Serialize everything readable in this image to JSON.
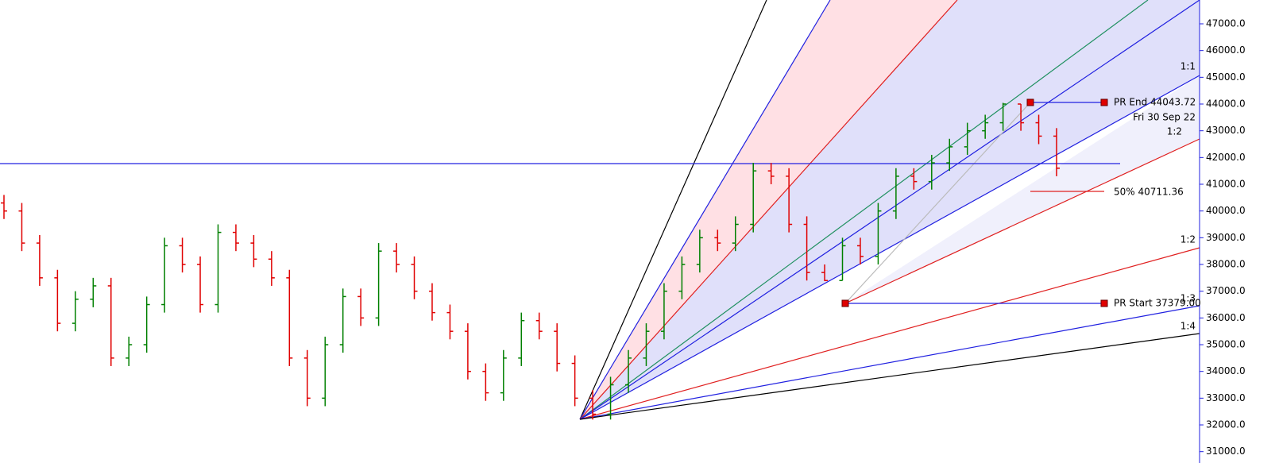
{
  "chart_data": {
    "type": "ohlc",
    "ylim": [
      30575,
      47891
    ],
    "yticks": [
      {
        "value": 31000,
        "label": "31000.0"
      },
      {
        "value": 32000,
        "label": "32000.0"
      },
      {
        "value": 33000,
        "label": "33000.0"
      },
      {
        "value": 34000,
        "label": "34000.0"
      },
      {
        "value": 35000,
        "label": "35000.0"
      },
      {
        "value": 36000,
        "label": "36000.0"
      },
      {
        "value": 37000,
        "label": "37000.0"
      },
      {
        "value": 38000,
        "label": "38000.0"
      },
      {
        "value": 39000,
        "label": "39000.0"
      },
      {
        "value": 40000,
        "label": "40000.0"
      },
      {
        "value": 41000,
        "label": "41000.0"
      },
      {
        "value": 42000,
        "label": "42000.0"
      },
      {
        "value": 43000,
        "label": "43000.0"
      },
      {
        "value": 44000,
        "label": "44000.0"
      },
      {
        "value": 45000,
        "label": "45000.0"
      },
      {
        "value": 46000,
        "label": "46000.0"
      },
      {
        "value": 47000,
        "label": "47000.0"
      }
    ],
    "up_color": "#008000",
    "down_color": "#e00000",
    "open": [
      40300,
      40000,
      38800,
      37500,
      35800,
      36700,
      37200,
      34500,
      35000,
      36500,
      38700,
      38000,
      36500,
      39200,
      38800,
      38200,
      37500,
      34500,
      33000,
      35000,
      36800,
      36000,
      38500,
      38000,
      37000,
      36200,
      35500,
      34000,
      33200,
      34500,
      35900,
      35500,
      34300,
      33000,
      32400,
      33500,
      34500,
      35500,
      37000,
      38000,
      39000,
      38800,
      39500,
      41500,
      41300,
      39500,
      37700,
      37400,
      38700,
      38300,
      40000,
      41300,
      41100,
      41800,
      42400,
      43000,
      43300,
      44000,
      43300,
      42800
    ],
    "high": [
      40600,
      40300,
      39100,
      37800,
      37000,
      37500,
      37500,
      35300,
      36800,
      39000,
      39000,
      38300,
      39500,
      39500,
      39100,
      38500,
      37800,
      34800,
      35300,
      37100,
      37100,
      38800,
      38800,
      38300,
      37300,
      36500,
      35800,
      34300,
      34800,
      36200,
      36200,
      35800,
      34600,
      33300,
      33800,
      34800,
      35800,
      37300,
      38300,
      39300,
      39300,
      39800,
      41800,
      41800,
      41600,
      39800,
      38000,
      39000,
      39000,
      40300,
      41600,
      41600,
      42100,
      42700,
      43300,
      43600,
      44043.72,
      44000,
      43600,
      43100
    ],
    "low": [
      39700,
      38500,
      37200,
      35500,
      35500,
      36400,
      34200,
      34200,
      34700,
      36200,
      37700,
      36200,
      36200,
      38500,
      37900,
      37200,
      34200,
      32700,
      32700,
      34700,
      35700,
      35700,
      37700,
      36700,
      35900,
      35200,
      33700,
      32900,
      32900,
      34200,
      35200,
      34000,
      32700,
      32200,
      32200,
      33200,
      34200,
      35200,
      36700,
      37700,
      38500,
      38500,
      39200,
      41000,
      39200,
      37400,
      37379,
      37400,
      38000,
      38000,
      39700,
      40800,
      40800,
      41500,
      42100,
      42700,
      43000,
      43000,
      42500,
      41300
    ],
    "close": [
      40000,
      38800,
      37500,
      35800,
      36700,
      37200,
      34500,
      35000,
      36500,
      38700,
      38000,
      36500,
      39200,
      38800,
      38200,
      37500,
      34500,
      33000,
      35000,
      36800,
      36000,
      38500,
      38000,
      37000,
      36200,
      35500,
      34000,
      33200,
      34500,
      35900,
      35500,
      34300,
      33000,
      32400,
      33500,
      34500,
      35500,
      37000,
      38000,
      39000,
      38800,
      39500,
      41500,
      41300,
      39500,
      37700,
      37400,
      38700,
      38300,
      40000,
      41300,
      41100,
      41800,
      42400,
      43000,
      43300,
      44000,
      43300,
      42800,
      41600
    ],
    "annotations": [
      "1:1",
      "PR End 44043.72",
      "Fri 30 Sep 22",
      "1:2",
      "50% 40711.36",
      "1:2",
      "PR Start 37379.00",
      "1:3",
      "1:4"
    ]
  }
}
